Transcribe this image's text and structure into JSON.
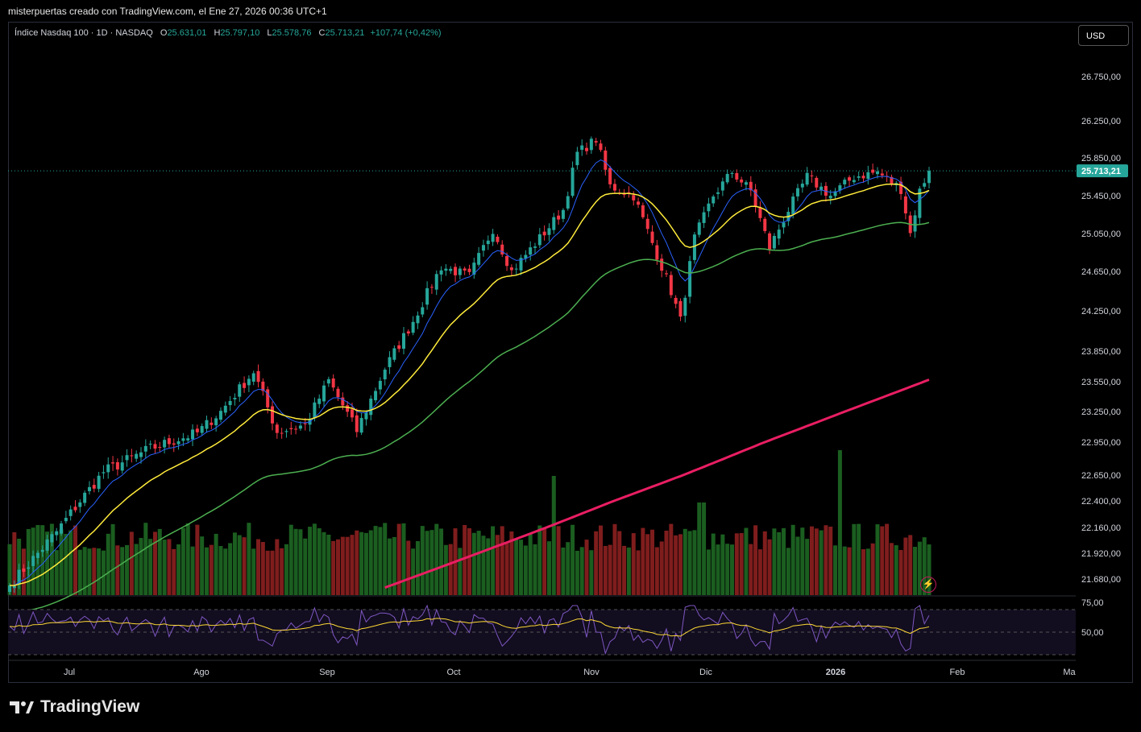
{
  "window": {
    "caption": "misterpuertas creado con TradingView.com, el Ene 27, 2026 00:36 UTC+1",
    "brand": "TradingView",
    "brand_icon": "tradingview-logo-icon"
  },
  "legend": {
    "symbol": "Índice Nasdaq 100 · 1D · NASDAQ",
    "o_label": "O",
    "o": "25.631,01",
    "h_label": "H",
    "h": "25.797,10",
    "l_label": "L",
    "l": "25.578,76",
    "c_label": "C",
    "c": "25.713,21",
    "change": "+107,74 (+0,42%)"
  },
  "currency_button": "USD",
  "last_price_tag": "25.713,21",
  "colors": {
    "up": "#26a69a",
    "down": "#f23645",
    "ema_short": "#2962ff",
    "ema_mid": "#ffeb3b",
    "ema_long": "#4caf50",
    "ema_200": "#e91e63",
    "vol_up": "#1b5e20",
    "vol_down": "#7f1d1d",
    "rsi": "#7e57c2",
    "rsi_ma": "#fdd835"
  },
  "chart_data": {
    "type": "candlestick",
    "y_ticks": [
      "26.750,00",
      "26.250,00",
      "25.850,00",
      "25.450,00",
      "25.050,00",
      "24.650,00",
      "24.250,00",
      "23.850,00",
      "23.550,00",
      "23.250,00",
      "22.950,00",
      "22.650,00",
      "22.400,00",
      "22.160,00",
      "21.920,00",
      "21.680,00"
    ],
    "x_ticks": [
      "Jul",
      "Ago",
      "Sep",
      "Oct",
      "Nov",
      "Dic",
      "2026",
      "Feb",
      "Ma"
    ],
    "rsi_ticks": [
      "75,00",
      "50,00"
    ],
    "last_price": 25713.21,
    "anchors": [
      {
        "i": 0,
        "p": 21620
      },
      {
        "i": 10,
        "p": 22120
      },
      {
        "i": 20,
        "p": 22680
      },
      {
        "i": 30,
        "p": 22890
      },
      {
        "i": 40,
        "p": 23040
      },
      {
        "i": 45,
        "p": 23250
      },
      {
        "i": 52,
        "p": 23650
      },
      {
        "i": 57,
        "p": 23050
      },
      {
        "i": 63,
        "p": 23120
      },
      {
        "i": 68,
        "p": 23560
      },
      {
        "i": 74,
        "p": 23060
      },
      {
        "i": 80,
        "p": 23680
      },
      {
        "i": 86,
        "p": 24150
      },
      {
        "i": 92,
        "p": 24700
      },
      {
        "i": 98,
        "p": 24600
      },
      {
        "i": 103,
        "p": 25100
      },
      {
        "i": 107,
        "p": 24650
      },
      {
        "i": 113,
        "p": 25000
      },
      {
        "i": 118,
        "p": 25300
      },
      {
        "i": 121,
        "p": 25900
      },
      {
        "i": 125,
        "p": 26050
      },
      {
        "i": 128,
        "p": 25550
      },
      {
        "i": 133,
        "p": 25450
      },
      {
        "i": 137,
        "p": 24950
      },
      {
        "i": 141,
        "p": 24450
      },
      {
        "i": 143,
        "p": 24150
      },
      {
        "i": 146,
        "p": 25000
      },
      {
        "i": 150,
        "p": 25450
      },
      {
        "i": 154,
        "p": 25700
      },
      {
        "i": 158,
        "p": 25500
      },
      {
        "i": 162,
        "p": 24900
      },
      {
        "i": 166,
        "p": 25300
      },
      {
        "i": 170,
        "p": 25650
      },
      {
        "i": 175,
        "p": 25450
      },
      {
        "i": 180,
        "p": 25650
      },
      {
        "i": 185,
        "p": 25700
      },
      {
        "i": 190,
        "p": 25520
      },
      {
        "i": 192,
        "p": 25050
      },
      {
        "i": 194,
        "p": 25500
      },
      {
        "i": 196,
        "p": 25713
      }
    ]
  }
}
